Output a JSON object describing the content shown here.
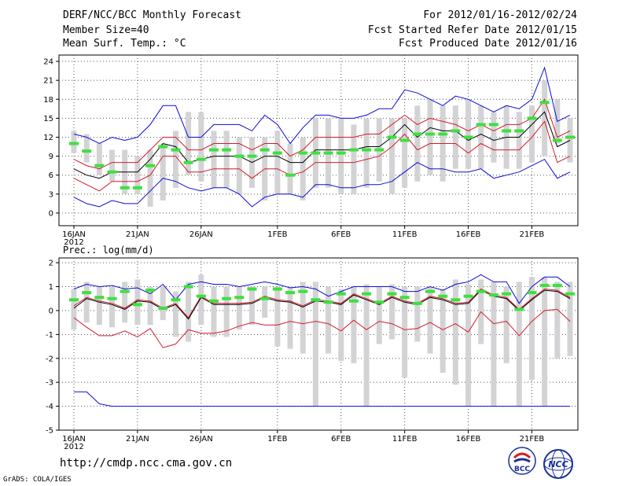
{
  "header": {
    "title": "DERF/NCC/BCC Monthly Forecast",
    "member_size": "Member Size=40",
    "variable": "Mean Surf. Temp.: °C",
    "period": "For 2012/01/16-2012/02/24",
    "started": "Fcst Started Refer Date 2012/01/15",
    "produced": "Fcst Produced Date 2012/01/16"
  },
  "footer": {
    "url": "http://cmdp.ncc.cma.gov.cn",
    "grads": "GrADS: COLA/IGES",
    "bcc_logo": "BCC",
    "ncc_logo": "NCC"
  },
  "colors": {
    "bar": "#d3d3d5",
    "mean": "#000000",
    "band": "#d41b2b",
    "envelope": "#0b0bd8",
    "marker": "#3ee03e"
  },
  "chart_data": [
    {
      "id": "temperature",
      "type": "line",
      "title": "Mean Surf. Temp.: °C",
      "ylim": [
        -2,
        25
      ],
      "yticks": [
        0,
        3,
        6,
        9,
        12,
        15,
        18,
        21,
        24
      ],
      "xtick_labels": [
        {
          "day": 0,
          "label": "16JAN"
        },
        {
          "day": 5,
          "label": "21JAN"
        },
        {
          "day": 10,
          "label": "26JAN"
        },
        {
          "day": 16,
          "label": "1FEB"
        },
        {
          "day": 21,
          "label": "6FEB"
        },
        {
          "day": 26,
          "label": "11FEB"
        },
        {
          "day": 31,
          "label": "16FEB"
        },
        {
          "day": 36,
          "label": "21FEB"
        }
      ],
      "xtick_year": "2012",
      "days": 40,
      "bar_low": [
        9.5,
        8,
        6,
        5,
        3,
        3,
        1,
        2,
        4,
        6,
        5,
        4,
        4,
        3,
        4,
        2,
        3,
        3,
        2,
        4,
        4,
        3,
        3,
        4,
        5,
        3,
        4,
        5,
        6,
        5,
        7,
        7,
        7,
        8,
        7,
        7,
        8,
        9,
        11,
        8
      ],
      "bar_high": [
        13,
        12.5,
        11,
        10,
        10,
        9,
        10,
        11,
        13,
        16,
        16,
        13,
        13,
        12,
        12,
        12,
        13,
        11,
        12,
        15,
        15,
        15,
        14,
        15,
        15,
        15,
        15,
        17,
        18,
        17,
        17,
        18,
        17,
        16,
        17,
        16,
        17,
        21,
        18,
        15
      ],
      "max": [
        12.5,
        12,
        11,
        12,
        11.5,
        12,
        14,
        17,
        17,
        12,
        12,
        14,
        14,
        14,
        13,
        15.5,
        14,
        11,
        13.5,
        15.5,
        15.5,
        15,
        15,
        15.5,
        16.5,
        16.5,
        19.5,
        19,
        18,
        17,
        18.5,
        18,
        17,
        16,
        17,
        16.5,
        18,
        23,
        14.5,
        15.5
      ],
      "p_high": [
        8.5,
        7.5,
        7,
        8,
        8,
        8,
        10,
        12,
        12,
        10,
        10,
        11,
        11,
        11,
        10,
        11,
        11,
        9,
        10,
        12,
        12,
        12,
        12,
        12.5,
        12.5,
        14,
        15.5,
        14,
        15,
        14.5,
        14,
        13,
        14,
        13,
        14,
        14,
        15,
        18,
        12,
        13
      ],
      "mean": [
        7,
        6,
        5.5,
        6.5,
        6.5,
        6.5,
        8.5,
        11,
        10.5,
        8,
        8.5,
        9,
        9,
        9,
        8,
        9,
        9,
        8,
        8,
        10,
        10,
        10,
        10,
        10.5,
        10.5,
        12,
        14,
        12,
        13.5,
        13,
        13,
        11.5,
        12.5,
        11.5,
        12,
        12,
        14,
        16,
        10.5,
        11.5
      ],
      "p_low": [
        5.5,
        4.5,
        3.5,
        5,
        5,
        5,
        6,
        9,
        9,
        6.5,
        6.5,
        7,
        7,
        7,
        5.5,
        7,
        7,
        6,
        6.5,
        8,
        8,
        8,
        8,
        8.5,
        9,
        10.5,
        12.5,
        10,
        11,
        11,
        11,
        9.5,
        11,
        10,
        10,
        10,
        12,
        14.5,
        8,
        9
      ],
      "min": [
        2.5,
        1.5,
        1,
        2,
        1.5,
        1.5,
        3.5,
        5.5,
        5,
        4,
        3.5,
        4,
        4,
        3,
        1,
        2.5,
        3,
        3,
        2.5,
        4.5,
        4.5,
        4,
        4,
        4.5,
        4.5,
        5,
        6.5,
        8,
        7,
        7,
        6.5,
        6.5,
        7,
        5.5,
        6,
        6.5,
        7.5,
        8.5,
        5.5,
        6.5
      ],
      "marker": [
        11,
        9.8,
        7.5,
        6.5,
        4,
        4,
        7.5,
        10.5,
        10,
        8,
        8.5,
        10,
        10,
        9,
        9,
        10,
        9.5,
        6,
        9.5,
        9.5,
        9.5,
        9.5,
        10,
        10,
        10,
        12,
        11.5,
        12.5,
        12.5,
        12.5,
        13,
        12,
        14,
        14,
        13,
        13,
        15,
        17.5,
        11.5,
        12
      ]
    },
    {
      "id": "precipitation",
      "type": "line",
      "title": "Prec.: log(mm/d)",
      "ylim": [
        -5,
        2.2
      ],
      "yticks": [
        -5,
        -4,
        -3,
        -2,
        -1,
        0,
        1,
        2
      ],
      "xtick_labels": [
        {
          "day": 0,
          "label": "16JAN"
        },
        {
          "day": 5,
          "label": "21JAN"
        },
        {
          "day": 10,
          "label": "26JAN"
        },
        {
          "day": 16,
          "label": "1FEB"
        },
        {
          "day": 21,
          "label": "6FEB"
        },
        {
          "day": 26,
          "label": "11FEB"
        },
        {
          "day": 31,
          "label": "16FEB"
        },
        {
          "day": 36,
          "label": "21FEB"
        }
      ],
      "xtick_year": "2012",
      "days": 40,
      "bar_low": [
        -0.8,
        -0.5,
        -0.6,
        -0.7,
        -0.5,
        -0.6,
        -0.6,
        -0.4,
        -1.1,
        -1.3,
        -0.6,
        -1.1,
        -1.1,
        -0.8,
        -0.6,
        -0.3,
        -1.5,
        -1.6,
        -1.8,
        -4,
        -1.8,
        -2.1,
        -2.2,
        -4,
        -1.4,
        -1.2,
        -2.8,
        -1.3,
        -1.8,
        -2.6,
        -3.1,
        -4,
        -1.4,
        -4,
        -2.2,
        -4,
        -2.9,
        -4,
        -2,
        -1.9
      ],
      "bar_high": [
        0.9,
        1.2,
        1,
        1,
        1.2,
        1.3,
        1,
        1,
        0.8,
        1.2,
        1.5,
        1,
        1,
        1,
        1,
        1,
        1,
        1,
        1.2,
        1.2,
        1,
        0.9,
        1,
        1.1,
        1,
        1.1,
        1,
        1,
        1,
        0.9,
        1.3,
        1.1,
        1.3,
        1.2,
        1,
        1.2,
        1.4,
        1.4,
        1.2,
        1.2
      ],
      "max": [
        0.9,
        1.1,
        1,
        1.05,
        0.9,
        0.95,
        0.7,
        1.1,
        0.45,
        1.1,
        1.2,
        1.1,
        1.1,
        1,
        1.1,
        1.2,
        1.1,
        0.95,
        1,
        0.9,
        0.6,
        0.8,
        1,
        1,
        1,
        1,
        0.8,
        0.8,
        1,
        0.85,
        1.1,
        1.2,
        1.5,
        1.2,
        1.2,
        0.3,
        1,
        1.4,
        1.4,
        1
      ],
      "p_high": [
        0.2,
        0.55,
        0.4,
        0.3,
        0.1,
        0.45,
        0.4,
        0.1,
        0.3,
        -0.3,
        0.6,
        0.3,
        0.3,
        0.3,
        0.35,
        0.6,
        0.45,
        0.4,
        0.2,
        0.45,
        0.4,
        0.3,
        0.7,
        0.5,
        0.3,
        0.6,
        0.4,
        0.3,
        0.6,
        0.5,
        0.3,
        0.35,
        0.9,
        0.65,
        0.55,
        0.05,
        0.5,
        0.9,
        0.85,
        0.55
      ],
      "mean": [
        0.1,
        0.5,
        0.35,
        0.25,
        0.05,
        0.4,
        0.35,
        0.05,
        0.25,
        -0.35,
        0.55,
        0.25,
        0.25,
        0.25,
        0.3,
        0.55,
        0.4,
        0.35,
        0.15,
        0.4,
        0.35,
        0.25,
        0.65,
        0.45,
        0.25,
        0.55,
        0.35,
        0.25,
        0.55,
        0.45,
        0.25,
        0.3,
        0.85,
        0.6,
        0.5,
        0,
        0.45,
        0.85,
        0.8,
        0.5
      ],
      "min": [
        -3.4,
        -3.4,
        -3.9,
        -4,
        -4,
        -4,
        -4,
        -4,
        -4,
        -4,
        -4,
        -4,
        -4,
        -4,
        -4,
        -4,
        -4,
        -4,
        -4,
        -4,
        -4,
        -4,
        -4,
        -4,
        -4,
        -4,
        -4,
        -4,
        -4,
        -4,
        -4,
        -4,
        -4,
        -4,
        -4,
        -4,
        -4,
        -4,
        -4,
        -4
      ],
      "p_low": [
        -0.3,
        -0.7,
        -1.05,
        -1.05,
        -0.85,
        -1.1,
        -0.75,
        -1.55,
        -1.4,
        -0.8,
        -0.95,
        -0.95,
        -0.85,
        -0.65,
        -0.5,
        -0.6,
        -0.6,
        -0.45,
        -0.55,
        -0.45,
        -0.55,
        -0.85,
        -0.4,
        -0.8,
        -0.45,
        -0.55,
        -0.8,
        -0.75,
        -0.5,
        -0.8,
        -0.55,
        -0.9,
        -0.05,
        -0.55,
        -0.45,
        -1.05,
        -0.45,
        0,
        0.05,
        -0.45
      ],
      "marker": [
        0.45,
        0.75,
        0.55,
        0.5,
        0.8,
        0.25,
        0.85,
        0.1,
        0.45,
        1,
        0.6,
        0.4,
        0.5,
        0.55,
        0.9,
        0.5,
        0.9,
        0.75,
        0.8,
        0.45,
        0.35,
        0.7,
        0.4,
        0.7,
        0.35,
        0.7,
        0.55,
        0.3,
        0.8,
        0.6,
        0.45,
        0.6,
        0.8,
        0.65,
        0.7,
        0.05,
        0.75,
        1.05,
        1.05,
        0.7
      ]
    }
  ]
}
